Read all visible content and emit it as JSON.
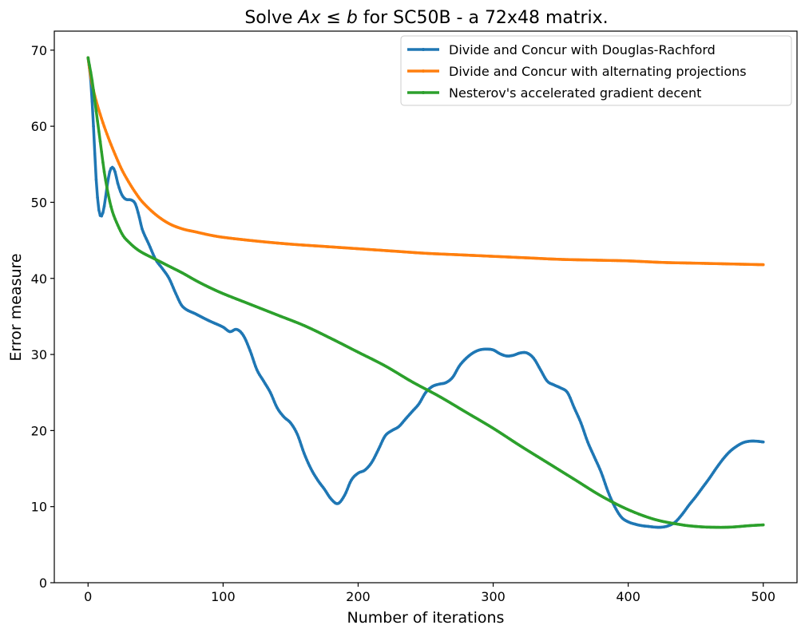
{
  "chart_data": {
    "type": "line",
    "title": {
      "prefix": "Solve ",
      "math_a": "Ax",
      "math_le": " ≤ ",
      "math_b": "b",
      "suffix": " for SC50B - a 72x48 matrix."
    },
    "xlabel": "Number of iterations",
    "ylabel": "Error measure",
    "xlim": [
      -25,
      525
    ],
    "ylim": [
      0,
      72.5
    ],
    "xticks": [
      0,
      100,
      200,
      300,
      400,
      500
    ],
    "yticks": [
      0,
      10,
      20,
      30,
      40,
      50,
      60,
      70
    ],
    "grid": false,
    "legend_position": "top-right",
    "series": [
      {
        "name": "Divide and Concur with Douglas-Rachford",
        "color": "#1f77b4",
        "points": [
          [
            0,
            69
          ],
          [
            2,
            66
          ],
          [
            4,
            60
          ],
          [
            6,
            53
          ],
          [
            8,
            49
          ],
          [
            10,
            48.2
          ],
          [
            12,
            49.5
          ],
          [
            14,
            52
          ],
          [
            16,
            54
          ],
          [
            18,
            54.6
          ],
          [
            20,
            54
          ],
          [
            22,
            52.5
          ],
          [
            25,
            51
          ],
          [
            28,
            50.4
          ],
          [
            32,
            50.3
          ],
          [
            35,
            49.8
          ],
          [
            38,
            48
          ],
          [
            40,
            46.5
          ],
          [
            45,
            44.5
          ],
          [
            50,
            42.5
          ],
          [
            55,
            41.3
          ],
          [
            60,
            40
          ],
          [
            65,
            38
          ],
          [
            70,
            36.3
          ],
          [
            80,
            35.3
          ],
          [
            90,
            34.4
          ],
          [
            100,
            33.6
          ],
          [
            105,
            33
          ],
          [
            110,
            33.3
          ],
          [
            115,
            32.5
          ],
          [
            120,
            30.5
          ],
          [
            125,
            28
          ],
          [
            130,
            26.5
          ],
          [
            135,
            25
          ],
          [
            140,
            23
          ],
          [
            145,
            21.8
          ],
          [
            150,
            21
          ],
          [
            155,
            19.5
          ],
          [
            160,
            17
          ],
          [
            165,
            15
          ],
          [
            170,
            13.5
          ],
          [
            175,
            12.3
          ],
          [
            180,
            11
          ],
          [
            185,
            10.4
          ],
          [
            190,
            11.5
          ],
          [
            195,
            13.5
          ],
          [
            200,
            14.4
          ],
          [
            205,
            14.8
          ],
          [
            210,
            15.8
          ],
          [
            215,
            17.5
          ],
          [
            220,
            19.3
          ],
          [
            225,
            20
          ],
          [
            230,
            20.5
          ],
          [
            235,
            21.5
          ],
          [
            240,
            22.5
          ],
          [
            245,
            23.5
          ],
          [
            250,
            25
          ],
          [
            255,
            25.8
          ],
          [
            260,
            26.1
          ],
          [
            265,
            26.3
          ],
          [
            270,
            27
          ],
          [
            275,
            28.5
          ],
          [
            280,
            29.5
          ],
          [
            285,
            30.2
          ],
          [
            290,
            30.6
          ],
          [
            295,
            30.7
          ],
          [
            300,
            30.6
          ],
          [
            305,
            30.1
          ],
          [
            310,
            29.8
          ],
          [
            315,
            29.9
          ],
          [
            320,
            30.2
          ],
          [
            325,
            30.2
          ],
          [
            330,
            29.5
          ],
          [
            335,
            28
          ],
          [
            340,
            26.5
          ],
          [
            345,
            26
          ],
          [
            350,
            25.6
          ],
          [
            355,
            25
          ],
          [
            360,
            23
          ],
          [
            365,
            21
          ],
          [
            370,
            18.5
          ],
          [
            375,
            16.5
          ],
          [
            380,
            14.5
          ],
          [
            385,
            12
          ],
          [
            390,
            10
          ],
          [
            395,
            8.6
          ],
          [
            400,
            8
          ],
          [
            405,
            7.7
          ],
          [
            410,
            7.5
          ],
          [
            415,
            7.4
          ],
          [
            420,
            7.3
          ],
          [
            425,
            7.3
          ],
          [
            430,
            7.5
          ],
          [
            435,
            8
          ],
          [
            440,
            9
          ],
          [
            445,
            10.2
          ],
          [
            450,
            11.3
          ],
          [
            455,
            12.5
          ],
          [
            460,
            13.7
          ],
          [
            465,
            15
          ],
          [
            470,
            16.2
          ],
          [
            475,
            17.2
          ],
          [
            480,
            17.9
          ],
          [
            485,
            18.4
          ],
          [
            490,
            18.6
          ],
          [
            495,
            18.6
          ],
          [
            500,
            18.5
          ]
        ]
      },
      {
        "name": "Divide and Concur with alternating projections",
        "color": "#ff7f0e",
        "points": [
          [
            0,
            69
          ],
          [
            2,
            66.5
          ],
          [
            5,
            64
          ],
          [
            10,
            61
          ],
          [
            15,
            58.5
          ],
          [
            20,
            56.3
          ],
          [
            25,
            54.3
          ],
          [
            30,
            52.7
          ],
          [
            35,
            51.3
          ],
          [
            40,
            50.1
          ],
          [
            50,
            48.4
          ],
          [
            60,
            47.2
          ],
          [
            70,
            46.5
          ],
          [
            80,
            46.1
          ],
          [
            90,
            45.7
          ],
          [
            100,
            45.4
          ],
          [
            125,
            44.9
          ],
          [
            150,
            44.5
          ],
          [
            175,
            44.2
          ],
          [
            200,
            43.9
          ],
          [
            225,
            43.6
          ],
          [
            250,
            43.3
          ],
          [
            275,
            43.1
          ],
          [
            300,
            42.9
          ],
          [
            325,
            42.7
          ],
          [
            350,
            42.5
          ],
          [
            375,
            42.4
          ],
          [
            400,
            42.3
          ],
          [
            425,
            42.1
          ],
          [
            450,
            42
          ],
          [
            475,
            41.9
          ],
          [
            500,
            41.8
          ]
        ]
      },
      {
        "name": "Nesterov's accelerated gradient decent",
        "color": "#2ca02c",
        "points": [
          [
            0,
            69
          ],
          [
            3,
            66
          ],
          [
            6,
            62
          ],
          [
            9,
            58
          ],
          [
            12,
            54
          ],
          [
            15,
            51
          ],
          [
            18,
            48.8
          ],
          [
            22,
            47
          ],
          [
            26,
            45.6
          ],
          [
            30,
            44.8
          ],
          [
            35,
            44
          ],
          [
            40,
            43.4
          ],
          [
            50,
            42.5
          ],
          [
            60,
            41.6
          ],
          [
            70,
            40.7
          ],
          [
            80,
            39.7
          ],
          [
            90,
            38.8
          ],
          [
            100,
            38
          ],
          [
            120,
            36.6
          ],
          [
            140,
            35.2
          ],
          [
            160,
            33.8
          ],
          [
            180,
            32.1
          ],
          [
            200,
            30.3
          ],
          [
            220,
            28.5
          ],
          [
            240,
            26.4
          ],
          [
            260,
            24.5
          ],
          [
            280,
            22.4
          ],
          [
            300,
            20.3
          ],
          [
            320,
            18
          ],
          [
            340,
            15.8
          ],
          [
            360,
            13.6
          ],
          [
            380,
            11.4
          ],
          [
            400,
            9.6
          ],
          [
            420,
            8.3
          ],
          [
            440,
            7.6
          ],
          [
            450,
            7.4
          ],
          [
            460,
            7.3
          ],
          [
            475,
            7.3
          ],
          [
            490,
            7.5
          ],
          [
            500,
            7.6
          ]
        ]
      }
    ]
  }
}
